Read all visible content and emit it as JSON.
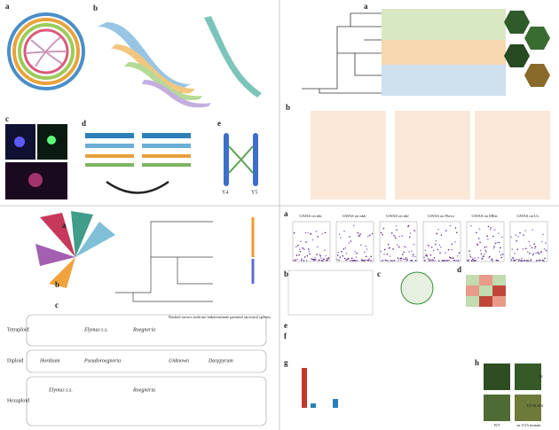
{
  "genome": {
    "labels": [
      "a",
      "b",
      "c",
      "d",
      "e"
    ],
    "chromosomes": [
      "Y4",
      "Y5"
    ]
  },
  "phylogeny": {
    "labels": [
      "a",
      "b"
    ]
  },
  "evolution": {
    "labels": [
      "a",
      "b",
      "c"
    ],
    "levels": [
      "Tetraploid",
      "Diploid",
      "Hexaploid"
    ],
    "taxa": [
      "Hordeum",
      "Pseudoroegneria",
      "Unknown",
      "Dasypyrum",
      "Elymus s.s.",
      "Roegneria",
      "Elymus s.s.",
      "Roegneria"
    ],
    "note": "Dashed arrows indicate indeterminate parental ancestral species"
  },
  "gwas": {
    "labels": [
      "a",
      "b",
      "c",
      "d",
      "e",
      "f",
      "g",
      "h"
    ],
    "titles": [
      "GWAS on nkt",
      "GWAS on nkb",
      "GWAS on nkf",
      "GWAS on Flavo",
      "GWAS on SBhs",
      "GWAS on Uv"
    ],
    "treatments": [
      "CK",
      "UV-B 204"
    ],
    "genotypes": [
      "WT",
      "m.1115 mutant"
    ]
  }
}
